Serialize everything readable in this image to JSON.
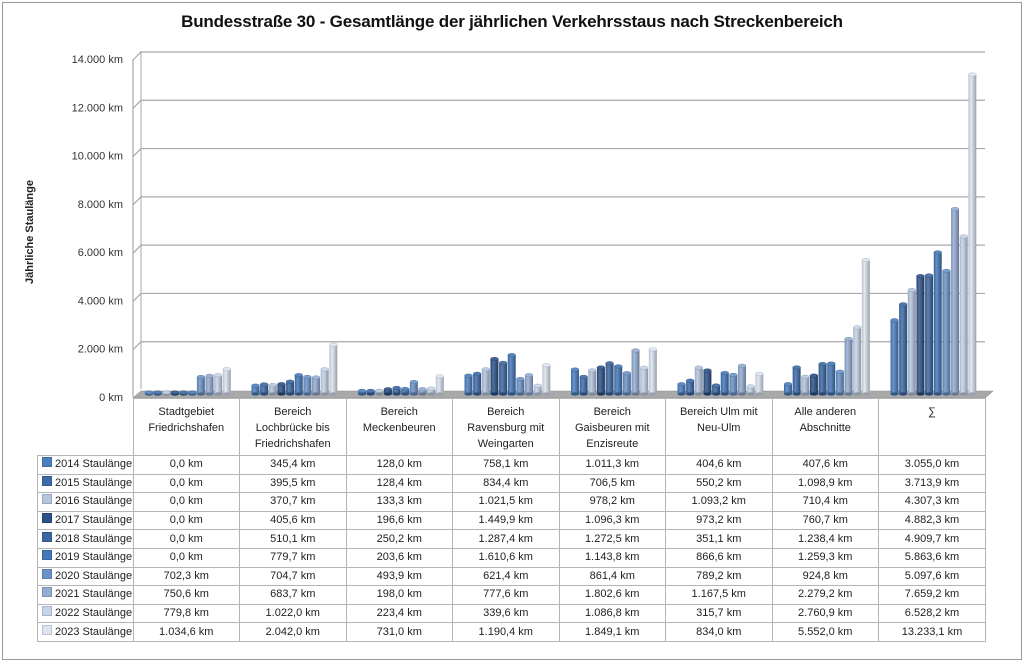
{
  "chart_data": {
    "type": "bar",
    "style": "3d-cylinder-clustered",
    "title": "Bundesstraße 30 - Gesamtlänge der jährlichen Verkehrsstaus nach Streckenbereich",
    "xlabel": "",
    "ylabel": "Jährliche Staulänge",
    "ylim": [
      0,
      14000
    ],
    "yticks": [
      0,
      2000,
      4000,
      6000,
      8000,
      10000,
      12000,
      14000
    ],
    "ytick_labels": [
      "0 km",
      "2.000 km",
      "4.000 km",
      "6.000 km",
      "8.000 km",
      "10.000 km",
      "12.000 km",
      "14.000 km"
    ],
    "grid": true,
    "legend": "data-table-left",
    "unit": "km",
    "categories": [
      [
        "Stadtgebiet",
        "Friedrichshafen"
      ],
      [
        "Bereich",
        "Lochbrücke bis",
        "Friedrichshafen"
      ],
      [
        "Bereich",
        "Meckenbeuren"
      ],
      [
        "Bereich",
        "Ravensburg mit",
        "Weingarten"
      ],
      [
        "Bereich",
        "Gaisbeuren mit",
        "Enzisreute"
      ],
      [
        "Bereich Ulm mit",
        "Neu-Ulm"
      ],
      [
        "Alle anderen",
        "Abschnitte"
      ],
      [
        "∑"
      ]
    ],
    "series": [
      {
        "name": "2014 Staulänge",
        "color": "#4a7ebf",
        "values": [
          0.0,
          345.4,
          128.0,
          758.1,
          1011.3,
          404.6,
          407.6,
          3055.0
        ],
        "labels": [
          "0,0 km",
          "345,4 km",
          "128,0 km",
          "758,1 km",
          "1.011,3 km",
          "404,6 km",
          "407,6 km",
          "3.055,0 km"
        ]
      },
      {
        "name": "2015 Staulänge",
        "color": "#3d6aa8",
        "values": [
          0.0,
          395.5,
          128.4,
          834.4,
          706.5,
          550.2,
          1098.9,
          3713.9
        ],
        "labels": [
          "0,0 km",
          "395,5 km",
          "128,4 km",
          "834,4 km",
          "706,5 km",
          "550,2 km",
          "1.098,9 km",
          "3.713,9 km"
        ]
      },
      {
        "name": "2016 Staulänge",
        "color": "#b4c6e0",
        "values": [
          0.0,
          370.7,
          133.3,
          1021.5,
          978.2,
          1093.2,
          710.4,
          4307.3
        ],
        "labels": [
          "0,0 km",
          "370,7 km",
          "133,3 km",
          "1.021,5 km",
          "978,2 km",
          "1.093,2 km",
          "710,4 km",
          "4.307,3 km"
        ]
      },
      {
        "name": "2017 Staulänge",
        "color": "#2c5186",
        "values": [
          0.0,
          405.6,
          196.6,
          1449.9,
          1096.3,
          973.2,
          760.7,
          4882.3
        ],
        "labels": [
          "0,0 km",
          "405,6 km",
          "196,6 km",
          "1.449,9 km",
          "1.096,3 km",
          "973,2 km",
          "760,7 km",
          "4.882,3 km"
        ]
      },
      {
        "name": "2018 Staulänge",
        "color": "#3b66a0",
        "values": [
          0.0,
          510.1,
          250.2,
          1287.4,
          1272.5,
          351.1,
          1238.4,
          4909.7
        ],
        "labels": [
          "0,0 km",
          "510,1 km",
          "250,2 km",
          "1.287,4 km",
          "1.272,5 km",
          "351,1 km",
          "1.238,4 km",
          "4.909,7 km"
        ]
      },
      {
        "name": "2019 Staulänge",
        "color": "#4377b8",
        "values": [
          0.0,
          779.7,
          203.6,
          1610.6,
          1143.8,
          866.6,
          1259.3,
          5863.6
        ],
        "labels": [
          "0,0 km",
          "779,7 km",
          "203,6 km",
          "1.610,6 km",
          "1.143,8 km",
          "866,6 km",
          "1.259,3 km",
          "5.863,6 km"
        ]
      },
      {
        "name": "2020 Staulänge",
        "color": "#6b93c8",
        "values": [
          702.3,
          704.7,
          493.9,
          621.4,
          861.4,
          789.2,
          924.8,
          5097.6
        ],
        "labels": [
          "702,3 km",
          "704,7 km",
          "493,9 km",
          "621,4 km",
          "861,4 km",
          "789,2 km",
          "924,8 km",
          "5.097,6 km"
        ]
      },
      {
        "name": "2021 Staulänge",
        "color": "#93acd3",
        "values": [
          750.6,
          683.7,
          198.0,
          777.6,
          1802.6,
          1167.5,
          2279.2,
          7659.2
        ],
        "labels": [
          "750,6 km",
          "683,7 km",
          "198,0 km",
          "777,6 km",
          "1.802,6 km",
          "1.167,5 km",
          "2.279,2 km",
          "7.659,2 km"
        ]
      },
      {
        "name": "2022 Staulänge",
        "color": "#c6d4ea",
        "values": [
          779.8,
          1022.0,
          223.4,
          339.6,
          1086.8,
          315.7,
          2760.9,
          6528.2
        ],
        "labels": [
          "779,8 km",
          "1.022,0 km",
          "223,4 km",
          "339,6 km",
          "1.086,8 km",
          "315,7 km",
          "2.760,9 km",
          "6.528,2 km"
        ]
      },
      {
        "name": "2023 Staulänge",
        "color": "#dce4f1",
        "values": [
          1034.6,
          2042.0,
          731.0,
          1190.4,
          1849.1,
          834.0,
          5552.0,
          13233.1
        ],
        "labels": [
          "1.034,6 km",
          "2.042,0 km",
          "731,0 km",
          "1.190,4 km",
          "1.849,1 km",
          "834,0 km",
          "5.552,0 km",
          "13.233,1 km"
        ]
      }
    ]
  }
}
